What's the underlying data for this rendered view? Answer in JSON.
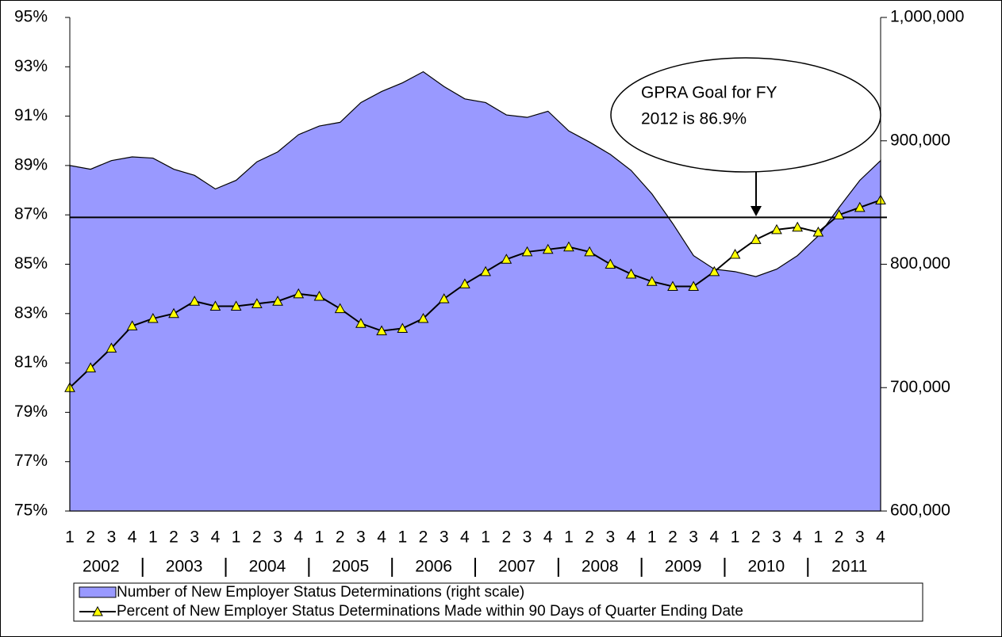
{
  "chart_data": {
    "type": "area-line",
    "categories": [
      "1",
      "2",
      "3",
      "4",
      "1",
      "2",
      "3",
      "4",
      "1",
      "2",
      "3",
      "4",
      "1",
      "2",
      "3",
      "4",
      "1",
      "2",
      "3",
      "4",
      "1",
      "2",
      "3",
      "4",
      "1",
      "2",
      "3",
      "4",
      "1",
      "2",
      "3",
      "4",
      "1",
      "2",
      "3",
      "4",
      "1",
      "2",
      "3",
      "4"
    ],
    "year_labels": [
      "2002",
      "2003",
      "2004",
      "2005",
      "2006",
      "2007",
      "2008",
      "2009",
      "2010",
      "2011"
    ],
    "series": [
      {
        "name": "Number of New Employer Status Determinations (right scale)",
        "color": "#9999ff",
        "axis": "y2",
        "values": [
          880000,
          877000,
          884000,
          887000,
          886000,
          877000,
          872000,
          861000,
          868000,
          883000,
          891000,
          905000,
          912000,
          915000,
          931000,
          940000,
          947000,
          956000,
          944000,
          934000,
          931000,
          921000,
          919000,
          924000,
          908000,
          899000,
          889000,
          876000,
          857000,
          833000,
          807000,
          796000,
          794000,
          790000,
          796000,
          807000,
          823000,
          846000,
          868000,
          884000
        ]
      },
      {
        "name": "Percent of New Employer Status Determinations Made within 90 Days of Quarter Ending Date",
        "color": "#000000",
        "marker_color": "#ffff00",
        "values": [
          80.0,
          80.8,
          81.6,
          82.5,
          82.8,
          83.0,
          83.5,
          83.3,
          83.3,
          83.4,
          83.5,
          83.8,
          83.7,
          83.2,
          82.6,
          82.3,
          82.4,
          82.8,
          83.6,
          84.2,
          84.7,
          85.2,
          85.5,
          85.6,
          85.7,
          85.5,
          85.0,
          84.6,
          84.3,
          84.1,
          84.1,
          84.7,
          85.4,
          86.0,
          86.4,
          86.5,
          86.3,
          87.0,
          87.3,
          87.6
        ]
      }
    ],
    "goal_line": 86.9,
    "annotation": [
      "GPRA Goal for FY",
      "2012 is 86.9%"
    ],
    "ylim": [
      75,
      95
    ],
    "yticks": [
      {
        "value": 75,
        "label": "75%"
      },
      {
        "value": 77,
        "label": "77%"
      },
      {
        "value": 79,
        "label": "79%"
      },
      {
        "value": 81,
        "label": "81%"
      },
      {
        "value": 83,
        "label": "83%"
      },
      {
        "value": 85,
        "label": "85%"
      },
      {
        "value": 87,
        "label": "87%"
      },
      {
        "value": 89,
        "label": "89%"
      },
      {
        "value": 91,
        "label": "91%"
      },
      {
        "value": 93,
        "label": "93%"
      },
      {
        "value": 95,
        "label": "95%"
      }
    ],
    "y2lim": [
      600000,
      1000000
    ],
    "y2ticks": [
      {
        "value": 600000,
        "label": "600,000"
      },
      {
        "value": 700000,
        "label": "700,000"
      },
      {
        "value": 800000,
        "label": "800,000"
      },
      {
        "value": 900000,
        "label": "900,000"
      },
      {
        "value": 1000000,
        "label": "1,000,000"
      }
    ]
  }
}
